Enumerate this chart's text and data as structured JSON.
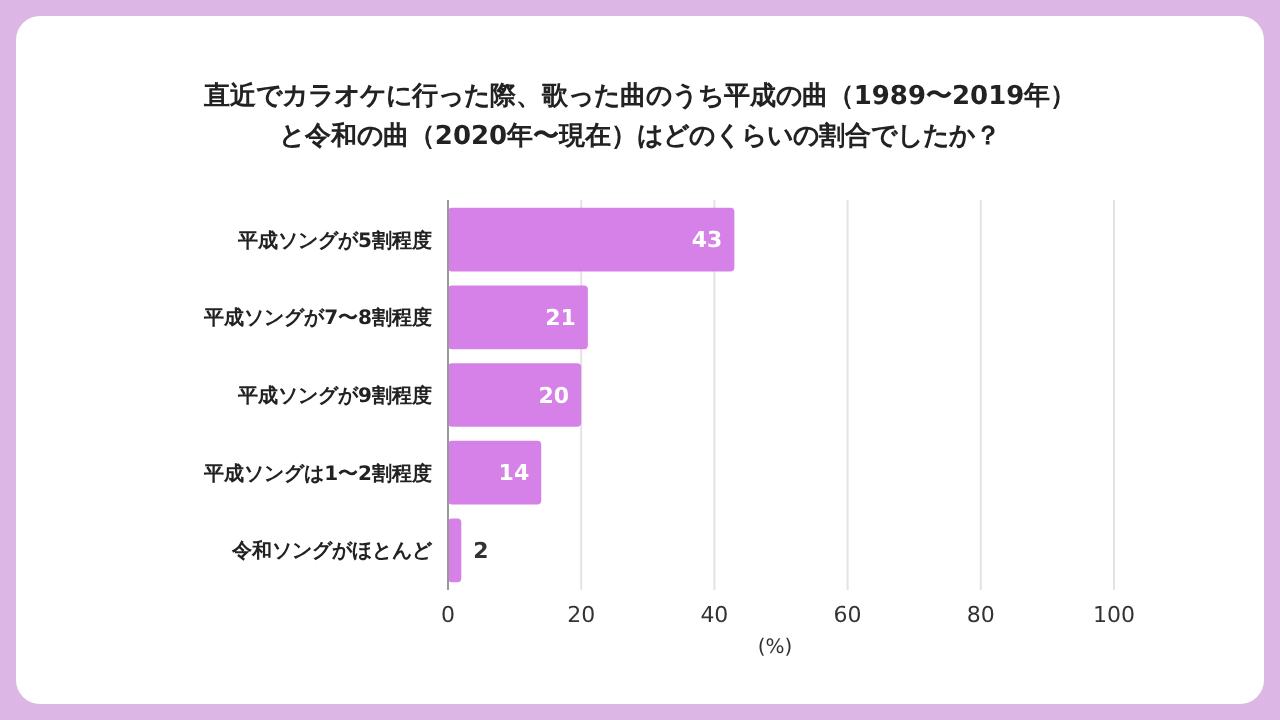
{
  "chart_data": {
    "type": "bar",
    "orientation": "horizontal",
    "title": "直近でカラオケに行った際、歌った曲のうち平成の曲（1989〜2019年）と令和の曲（2020年〜現在）はどのくらいの割合でしたか？",
    "categories": [
      "平成ソングが5割程度",
      "平成ソングが7〜8割程度",
      "平成ソングが9割程度",
      "平成ソングは1〜2割程度",
      "令和ソングがほとんど"
    ],
    "values": [
      43,
      21,
      20,
      14,
      2
    ],
    "color": "#d681e8",
    "xlim": [
      0,
      100
    ],
    "xticks": [
      0,
      20,
      40,
      60,
      80,
      100
    ],
    "xlabel": "(%)",
    "grid": "x",
    "data_labels": true
  }
}
